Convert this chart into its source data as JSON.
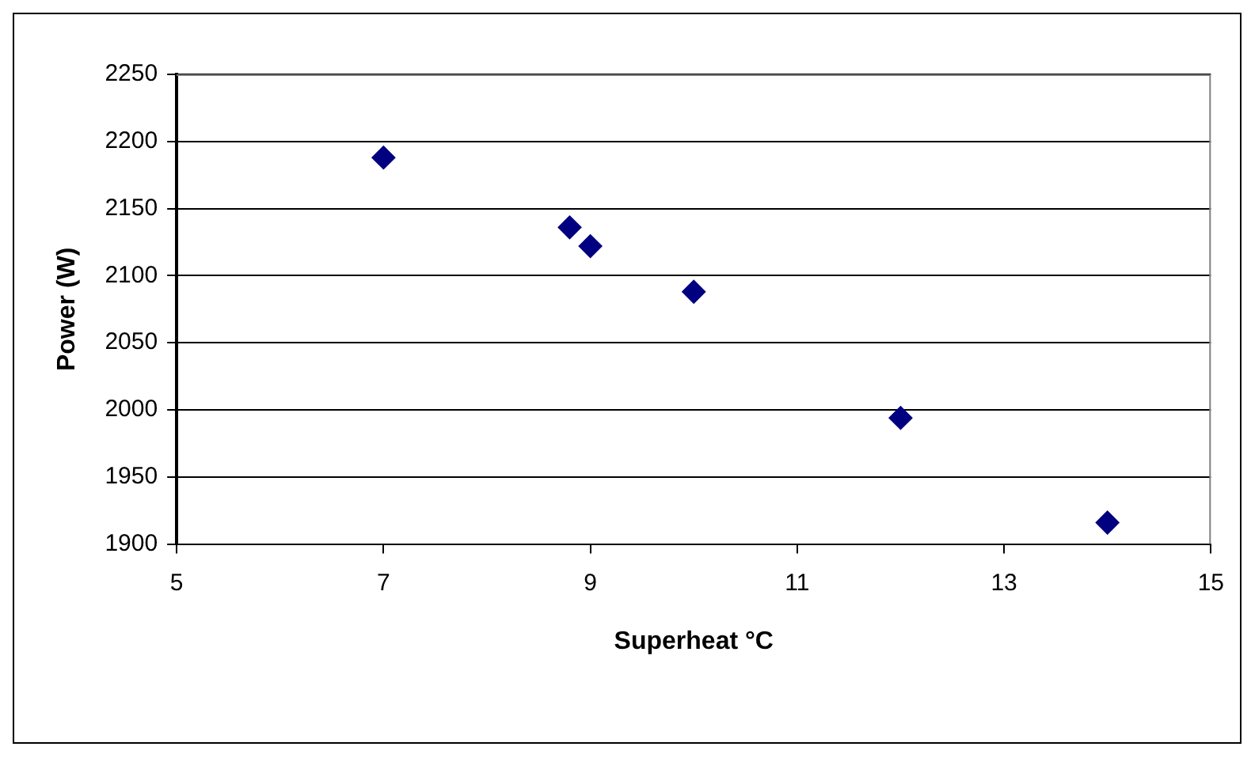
{
  "chart_data": {
    "type": "scatter",
    "xlabel": "Superheat °C",
    "ylabel": "Power (W)",
    "x": [
      7,
      8.8,
      9,
      10,
      12,
      14
    ],
    "values": [
      2188,
      2136,
      2122,
      2088,
      1994,
      1916
    ],
    "color": "#000080",
    "marker": "diamond",
    "xlim": [
      5,
      15
    ],
    "xticks": [
      5,
      7,
      9,
      11,
      13,
      15
    ],
    "ylim": [
      1900,
      2250
    ],
    "yticks": [
      1900,
      1950,
      2000,
      2050,
      2100,
      2150,
      2200,
      2250
    ],
    "grid": "y",
    "legend": false
  }
}
